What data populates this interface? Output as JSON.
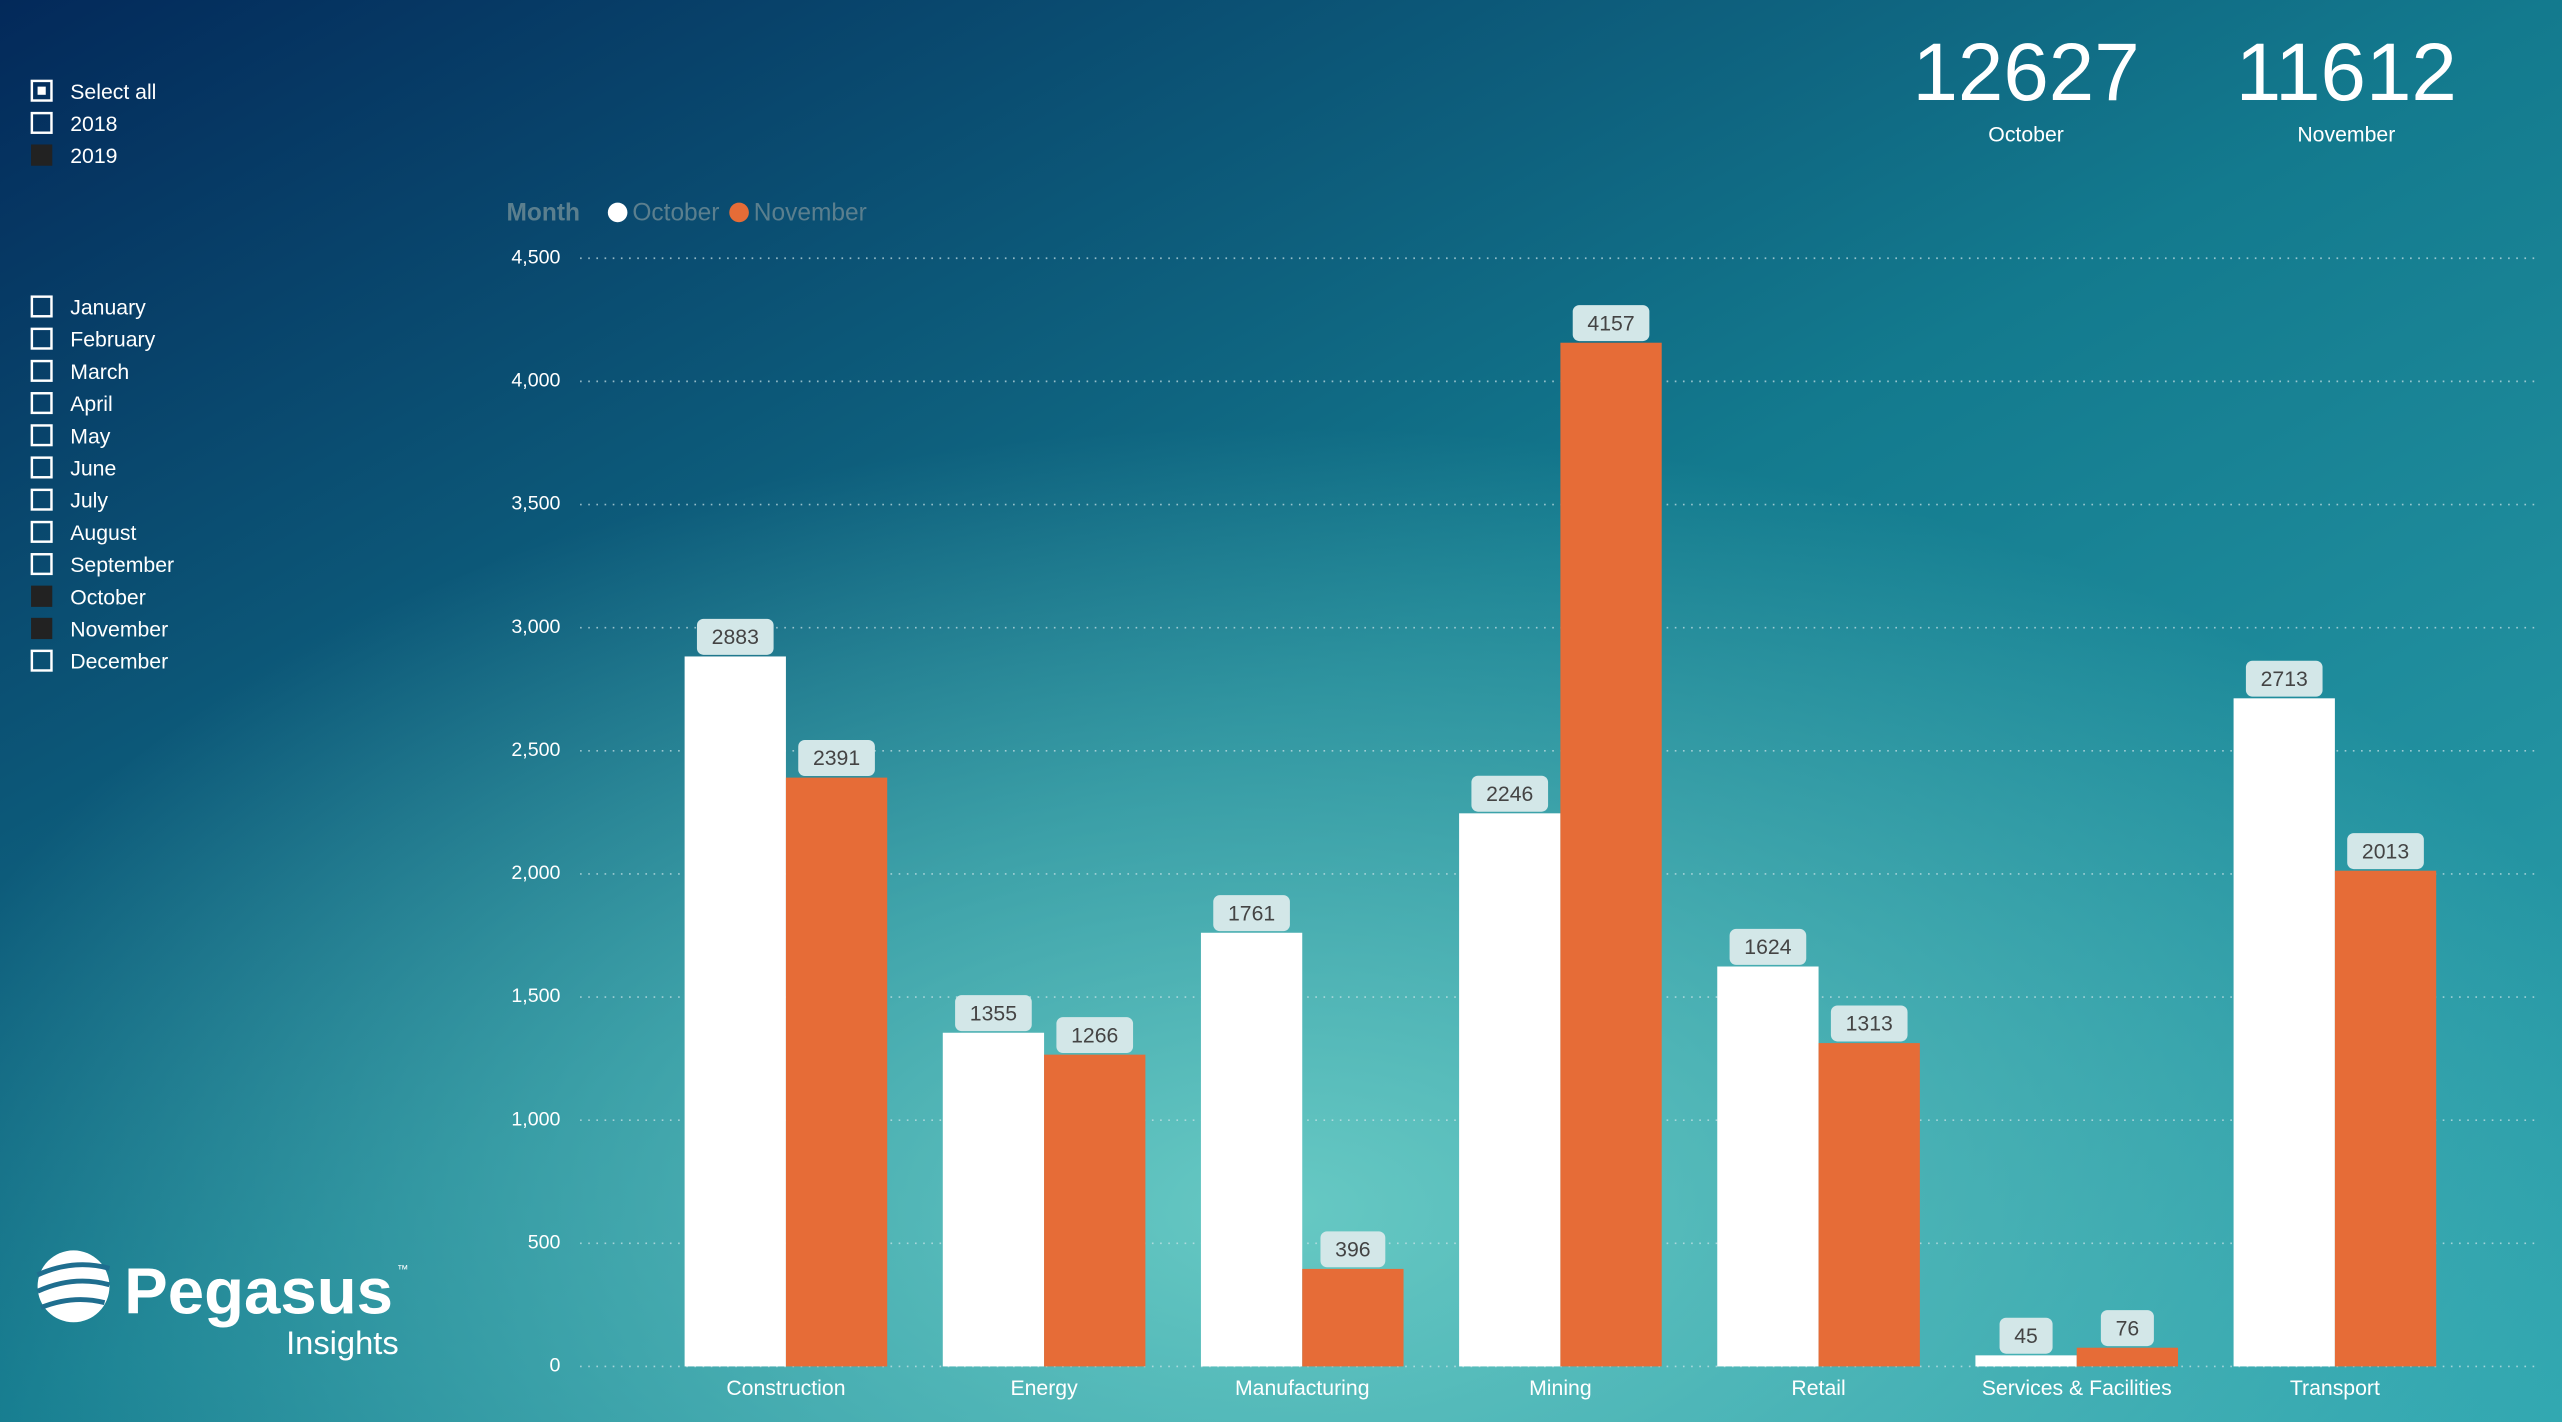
{
  "slicers": {
    "years": [
      {
        "label": "Select all",
        "state": "partial"
      },
      {
        "label": "2018",
        "state": "off"
      },
      {
        "label": "2019",
        "state": "on"
      }
    ],
    "months": [
      {
        "label": "January",
        "state": "off"
      },
      {
        "label": "February",
        "state": "off"
      },
      {
        "label": "March",
        "state": "off"
      },
      {
        "label": "April",
        "state": "off"
      },
      {
        "label": "May",
        "state": "off"
      },
      {
        "label": "June",
        "state": "off"
      },
      {
        "label": "July",
        "state": "off"
      },
      {
        "label": "August",
        "state": "off"
      },
      {
        "label": "September",
        "state": "off"
      },
      {
        "label": "October",
        "state": "on"
      },
      {
        "label": "November",
        "state": "on"
      },
      {
        "label": "December",
        "state": "off"
      }
    ]
  },
  "kpis": [
    {
      "value": "12627",
      "label": "October"
    },
    {
      "value": "11612",
      "label": "November"
    }
  ],
  "logo": {
    "name": "Pegasus",
    "tm": "™",
    "sub": "Insights"
  },
  "chart_data": {
    "type": "bar",
    "legend_title": "Month",
    "categories": [
      "Construction",
      "Energy",
      "Manufacturing",
      "Mining",
      "Retail",
      "Services & Facilities",
      "Transport"
    ],
    "series": [
      {
        "name": "October",
        "color": "#ffffff",
        "values": [
          2883,
          1355,
          1761,
          2246,
          1624,
          45,
          2713
        ]
      },
      {
        "name": "November",
        "color": "#e66c37",
        "values": [
          2391,
          1266,
          396,
          4157,
          1313,
          76,
          2013
        ]
      }
    ],
    "ylim": [
      0,
      4500
    ],
    "yticks": [
      0,
      500,
      {
        "value": 1000,
        "label": "1,000"
      },
      {
        "value": 1500,
        "label": "1,500"
      },
      {
        "value": 2000,
        "label": "2,000"
      },
      {
        "value": 2500,
        "label": "2,500"
      },
      {
        "value": 3000,
        "label": "3,000"
      },
      {
        "value": 3500,
        "label": "3,500"
      },
      {
        "value": 4000,
        "label": "4,000"
      },
      {
        "value": 4500,
        "label": "4,500"
      }
    ],
    "grid": true
  }
}
